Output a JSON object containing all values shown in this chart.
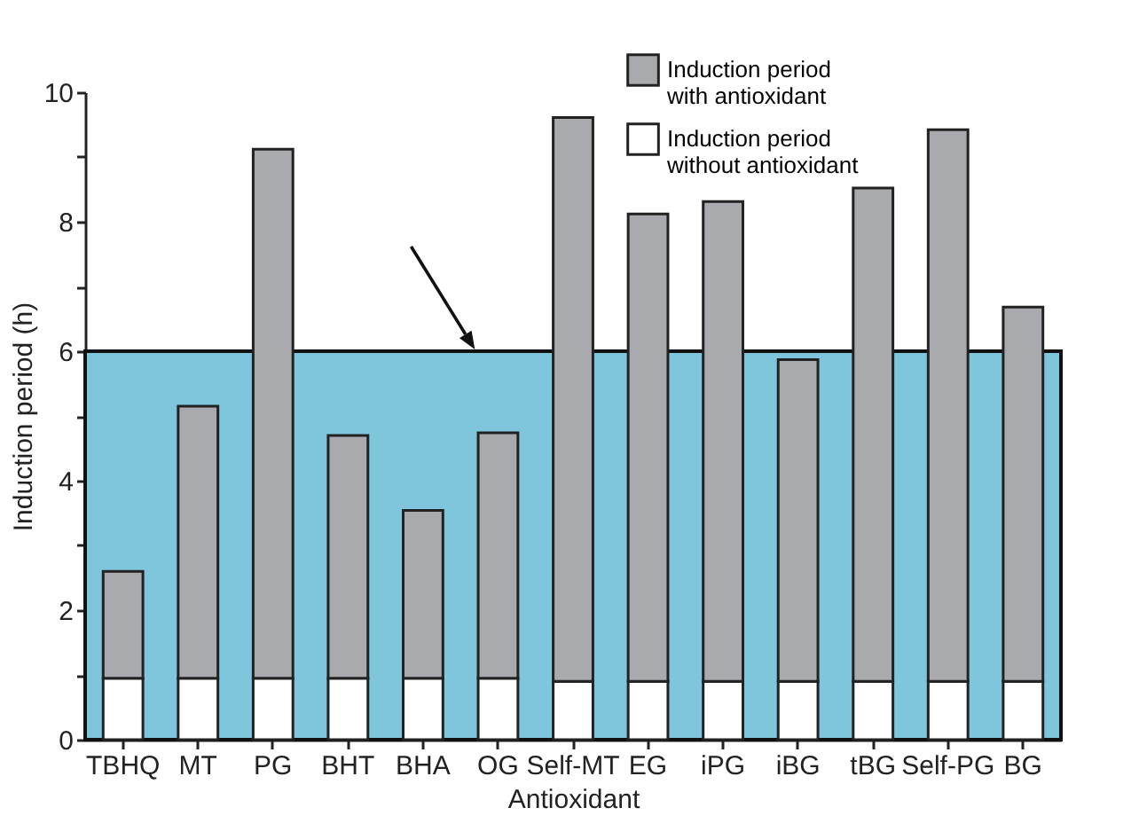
{
  "chart_data": {
    "type": "bar",
    "stacked": true,
    "xlabel": "Antioxidant",
    "ylabel": "Induction period (h)",
    "categories": [
      "TBHQ",
      "MT",
      "PG",
      "BHT",
      "BHA",
      "OG",
      "Self-MT",
      "EG",
      "iPG",
      "iBG",
      "tBG",
      "Self-PG",
      "BG"
    ],
    "series": [
      {
        "name": "Induction period without antioxidant",
        "color": "#ffffff",
        "values": [
          0.95,
          0.95,
          0.95,
          0.95,
          0.95,
          0.95,
          0.9,
          0.9,
          0.9,
          0.9,
          0.9,
          0.9,
          0.9
        ]
      },
      {
        "name": "Induction period with antioxidant",
        "color": "#a9aaad",
        "values": [
          1.65,
          4.2,
          8.17,
          3.75,
          2.59,
          3.79,
          8.71,
          7.22,
          7.41,
          4.97,
          7.62,
          8.52,
          5.78
        ]
      }
    ],
    "ylim": [
      0,
      10
    ],
    "yticks": [
      0,
      {
        "value": 1,
        "label": null
      },
      2,
      {
        "value": 3,
        "label": null
      },
      4,
      {
        "value": 5,
        "label": null
      },
      6,
      {
        "value": 7,
        "label": null
      },
      8,
      {
        "value": 9,
        "label": null
      },
      10
    ],
    "bands": [
      {
        "axis": "y",
        "from": 0,
        "to": 6,
        "color": "#7fc6dc"
      }
    ],
    "legend": "top right",
    "grid": false
  }
}
